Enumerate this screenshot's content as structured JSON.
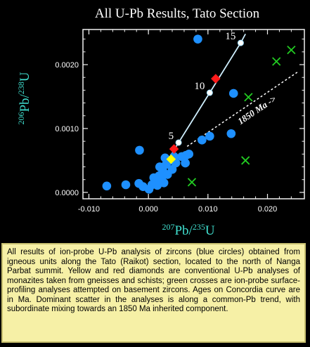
{
  "chart_data": {
    "type": "scatter",
    "title": "All U-Pb Results, Tato Section",
    "xlabel_mass": "207",
    "xlabel_main": "Pb/",
    "xlabel_mass2": "235",
    "xlabel_end": "U",
    "ylabel_mass": "206",
    "ylabel_main": "Pb/",
    "ylabel_mass2": "238",
    "ylabel_end": "U",
    "xlim": [
      -0.011,
      0.0262
    ],
    "ylim": [
      -0.0001,
      0.00255
    ],
    "x_ticks": [
      -0.01,
      0.0,
      0.01,
      0.02
    ],
    "x_tick_labels": [
      "-0.010",
      "0.000",
      "0.010",
      "0.020"
    ],
    "y_ticks": [
      0.0,
      0.001,
      0.002
    ],
    "y_tick_labels": [
      "0.0000",
      "0.0010",
      "0.0020"
    ],
    "grid": false,
    "concordia": {
      "name": "Concordia",
      "points": [
        {
          "x": 0.0,
          "y": 0.0
        },
        {
          "x": 0.00507,
          "y": 0.00078,
          "label": "5"
        },
        {
          "x": 0.0103,
          "y": 0.00156,
          "label": "10"
        },
        {
          "x": 0.0155,
          "y": 0.00234,
          "label": "15"
        },
        {
          "x": 0.0163,
          "y": 0.00248
        }
      ]
    },
    "common_pb_trend": {
      "label": "1850 Ma ->",
      "points": [
        {
          "x": 0.0065,
          "y": 0.00072
        },
        {
          "x": 0.025,
          "y": 0.00188
        }
      ]
    },
    "series": [
      {
        "name": "zircons (blue circles)",
        "color": "#1e90ff",
        "marker": "circle",
        "points": [
          {
            "x": 0.0083,
            "y": 0.0024
          },
          {
            "x": 0.0143,
            "y": 0.00155
          },
          {
            "x": 0.0139,
            "y": 0.00092
          },
          {
            "x": 0.0103,
            "y": 0.00088
          },
          {
            "x": 0.009,
            "y": 0.00082
          },
          {
            "x": -0.0015,
            "y": 0.00066
          },
          {
            "x": -0.007,
            "y": 0.0001
          },
          {
            "x": -0.0038,
            "y": 0.00012
          },
          {
            "x": -0.0016,
            "y": 0.00014
          },
          {
            "x": -0.0009,
            "y": 9e-05
          },
          {
            "x": 0.0001,
            "y": 5e-05
          },
          {
            "x": 0.0006,
            "y": 0.00012
          },
          {
            "x": 0.0012,
            "y": 0.00018
          },
          {
            "x": 0.0018,
            "y": 0.00026
          },
          {
            "x": 0.0024,
            "y": 0.00034
          },
          {
            "x": 0.003,
            "y": 0.00044
          },
          {
            "x": 0.0036,
            "y": 0.0005
          },
          {
            "x": 0.0043,
            "y": 0.00056
          },
          {
            "x": 0.0028,
            "y": 0.00054
          },
          {
            "x": 0.0056,
            "y": 0.00056
          },
          {
            "x": 0.0063,
            "y": 0.00058
          },
          {
            "x": 0.0068,
            "y": 0.0006
          },
          {
            "x": 0.0062,
            "y": 0.00046
          },
          {
            "x": 0.0022,
            "y": 0.00022
          },
          {
            "x": 0.0015,
            "y": 0.00011
          },
          {
            "x": 0.0032,
            "y": 0.00028
          },
          {
            "x": 0.0046,
            "y": 0.00046
          },
          {
            "x": 0.004,
            "y": 0.00036
          },
          {
            "x": 0.0019,
            "y": 0.0004
          },
          {
            "x": 0.0009,
            "y": 0.00023
          },
          {
            "x": 0.0026,
            "y": 0.00015
          }
        ]
      },
      {
        "name": "monazites (yellow diamonds)",
        "color": "#ffff00",
        "marker": "diamond",
        "points": [
          {
            "x": 0.0038,
            "y": 0.00052
          }
        ]
      },
      {
        "name": "monazites (red diamonds)",
        "color": "#ff1a1a",
        "marker": "diamond",
        "points": [
          {
            "x": 0.0043,
            "y": 0.00068
          },
          {
            "x": 0.0113,
            "y": 0.00178
          }
        ]
      },
      {
        "name": "ion-probe surface-profiling (green crosses)",
        "color": "#22cc22",
        "marker": "cross",
        "points": [
          {
            "x": 0.0073,
            "y": 0.00016
          },
          {
            "x": 0.0168,
            "y": 0.00149
          },
          {
            "x": 0.0163,
            "y": 0.0005
          },
          {
            "x": 0.0215,
            "y": 0.00205
          },
          {
            "x": 0.024,
            "y": 0.00223
          }
        ]
      }
    ],
    "colors": {
      "axis": "#f0f0f0",
      "title": "#ffffff",
      "axis_label": "#40e0d0",
      "concordia": "#cfefff",
      "trend": "#ffffff"
    }
  },
  "caption": "All results of ion-probe U-Pb analysis of zircons (blue circles) obtained from igneous units along the Tato (Raikot) section, located to the north of Nanga Parbat summit. Yellow and red diamonds are conventional U-Pb analyses of monazites taken from gneisses and schists; green crosses are ion-probe surface-profiling analyses attempted on basement zircons. Ages on Concordia curve are in Ma. Dominant scatter in the analyses is along a common-Pb trend, with subordinate mixing towards an 1850 Ma inherited component."
}
